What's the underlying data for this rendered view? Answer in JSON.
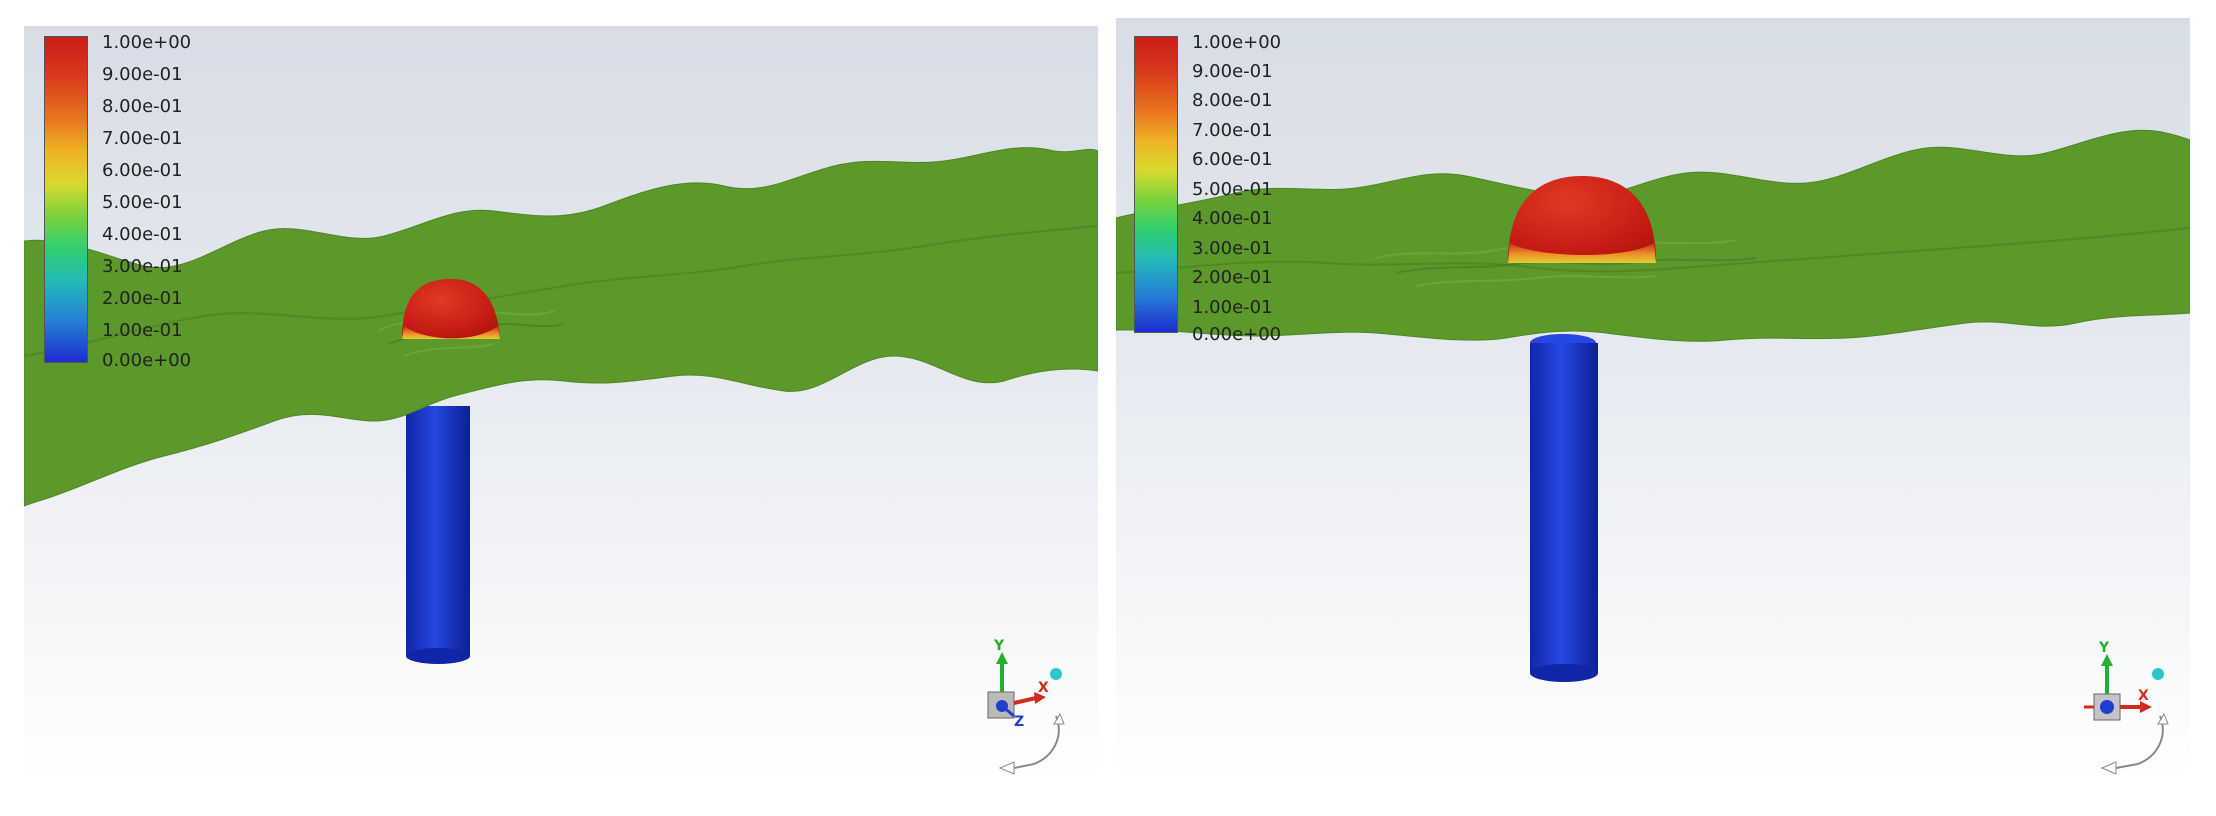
{
  "views": [
    {
      "legend": {
        "labels": [
          "1.00e+00",
          "9.00e-01",
          "8.00e-01",
          "7.00e-01",
          "6.00e-01",
          "5.00e-01",
          "4.00e-01",
          "3.00e-01",
          "2.00e-01",
          "1.00e-01",
          "0.00e+00"
        ]
      },
      "triad": {
        "y": "Y",
        "x": "X",
        "z": "Z"
      }
    },
    {
      "legend": {
        "labels": [
          "1.00e+00",
          "9.00e-01",
          "8.00e-01",
          "7.00e-01",
          "6.00e-01",
          "5.00e-01",
          "4.00e-01",
          "3.00e-01",
          "2.00e-01",
          "1.00e-01",
          "0.00e+00"
        ]
      },
      "triad": {
        "y": "Y",
        "x": "X"
      }
    }
  ],
  "colors": {
    "colormap": [
      "#d21f1b",
      "#e8651c",
      "#f6a022",
      "#e8d32a",
      "#9fd33a",
      "#3fcf4a",
      "#27c99a",
      "#21a7cf",
      "#2a6fd6",
      "#1f2fd0"
    ],
    "wave_surface": "#5a9a2a",
    "cylinder": "#1736c8",
    "dome": "#d22a1e"
  }
}
